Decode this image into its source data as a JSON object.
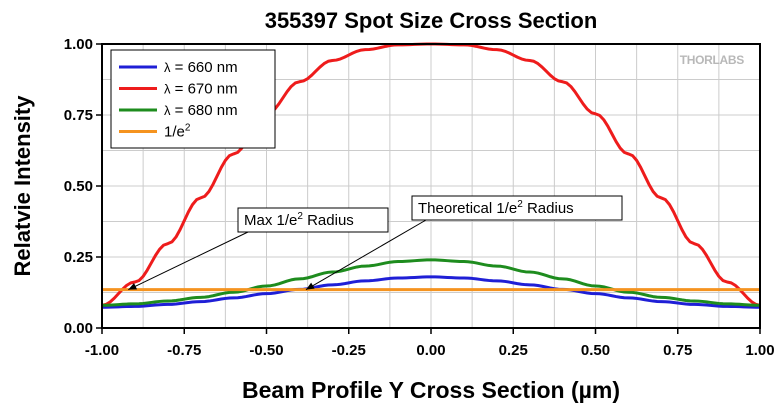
{
  "chart_data": {
    "type": "line",
    "title": "355397 Spot Size Cross Section",
    "xlabel": "Beam Profile Y Cross Section (µm)",
    "ylabel": "Relatvie Intensity",
    "xlim": [
      -1.0,
      1.0
    ],
    "ylim": [
      0.0,
      1.0
    ],
    "grid": true,
    "legend_position": "top-left",
    "x_ticks": [
      "-1.00",
      "-0.75",
      "-0.50",
      "-0.25",
      "0.00",
      "0.25",
      "0.50",
      "0.75",
      "1.00"
    ],
    "y_ticks": [
      "0.00",
      "0.25",
      "0.50",
      "0.75",
      "1.00"
    ],
    "x": [
      -1.0,
      -0.9,
      -0.8,
      -0.7,
      -0.6,
      -0.5,
      -0.4,
      -0.3,
      -0.2,
      -0.1,
      0.0,
      0.1,
      0.2,
      0.3,
      0.4,
      0.5,
      0.6,
      0.7,
      0.8,
      0.9,
      1.0
    ],
    "series": [
      {
        "name": "λ = 660 nm",
        "legend_prefix": "λ",
        "legend_text": " = 660 nm",
        "color": "#1f1fd6",
        "values": [
          0.073,
          0.076,
          0.083,
          0.093,
          0.106,
          0.121,
          0.136,
          0.152,
          0.166,
          0.176,
          0.18,
          0.176,
          0.166,
          0.152,
          0.136,
          0.121,
          0.106,
          0.093,
          0.083,
          0.076,
          0.073
        ]
      },
      {
        "name": "λ = 670 nm",
        "legend_prefix": "λ",
        "legend_text": " = 670 nm",
        "color": "#ee1c1c",
        "values": [
          0.08,
          0.162,
          0.297,
          0.458,
          0.613,
          0.754,
          0.867,
          0.942,
          0.98,
          0.997,
          1.0,
          0.997,
          0.98,
          0.942,
          0.867,
          0.754,
          0.613,
          0.458,
          0.297,
          0.162,
          0.08
        ]
      },
      {
        "name": "λ = 680 nm",
        "legend_prefix": "λ",
        "legend_text": " = 680 nm",
        "color": "#1e8c1e",
        "values": [
          0.08,
          0.085,
          0.095,
          0.108,
          0.126,
          0.148,
          0.173,
          0.197,
          0.218,
          0.234,
          0.24,
          0.234,
          0.218,
          0.197,
          0.173,
          0.148,
          0.126,
          0.108,
          0.095,
          0.085,
          0.08
        ]
      },
      {
        "name": "1/e2",
        "legend_text": "1/e",
        "legend_sup": "2",
        "color": "#f5931f",
        "values": [
          0.135,
          0.135,
          0.135,
          0.135,
          0.135,
          0.135,
          0.135,
          0.135,
          0.135,
          0.135,
          0.135,
          0.135,
          0.135,
          0.135,
          0.135,
          0.135,
          0.135,
          0.135,
          0.135,
          0.135,
          0.135
        ]
      }
    ],
    "annotations": [
      {
        "text": "Max 1/e",
        "sup": "2",
        "tail": " Radius",
        "arrow_to": [
          -0.92,
          0.135
        ]
      },
      {
        "text": "Theoretical 1/e",
        "sup": "2",
        "tail": " Radius",
        "arrow_to": [
          -0.38,
          0.135
        ]
      }
    ]
  },
  "watermark": "THORLABS"
}
